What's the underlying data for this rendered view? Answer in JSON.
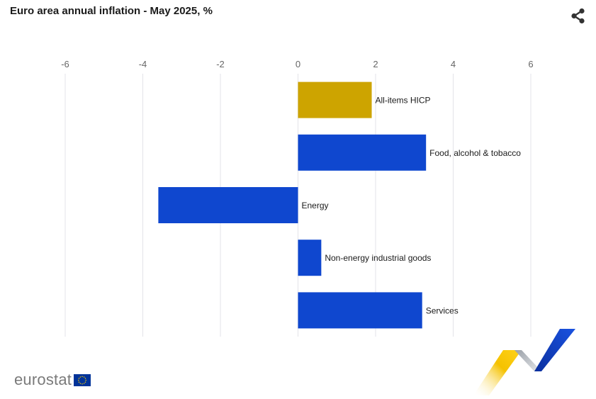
{
  "header": {
    "title": "Euro area annual inflation - May 2025, %",
    "share_icon": "share-icon"
  },
  "brand": {
    "name": "eurostat",
    "flag_icon": "eu-flag-icon",
    "ribbon_icon": "eurostat-ribbon-graphic"
  },
  "colors": {
    "highlight": "#cda400",
    "bar": "#0f47cf",
    "grid": "#e3e3e8",
    "tick_label": "#666666"
  },
  "chart_data": {
    "type": "bar",
    "orientation": "horizontal",
    "title": "Euro area annual inflation - May 2025, %",
    "categories": [
      "All-items HICP",
      "Food, alcohol & tobacco",
      "Energy",
      "Non-energy industrial goods",
      "Services"
    ],
    "values": [
      1.9,
      3.3,
      -3.6,
      0.6,
      3.2
    ],
    "highlight_index": 0,
    "xlim": [
      -6,
      6
    ],
    "xticks": [
      -6,
      -4,
      -2,
      0,
      2,
      4,
      6
    ],
    "xticks_position": "top",
    "grid": true,
    "legend": false
  }
}
